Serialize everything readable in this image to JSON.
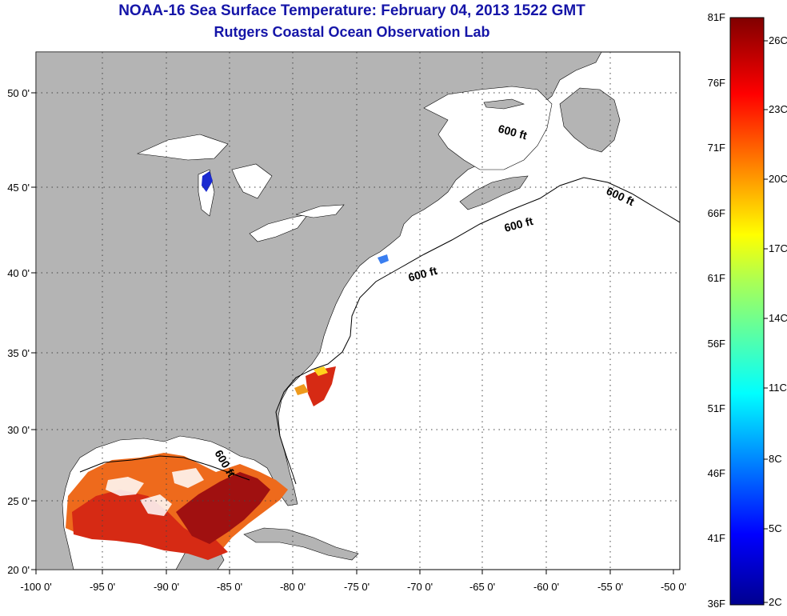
{
  "title": "NOAA-16 Sea Surface Temperature:  February 04, 2013 1522 GMT",
  "subtitle": "Rutgers Coastal Ocean Observation Lab",
  "lon_ticks": [
    "-100 0'",
    "-95 0'",
    "-90 0'",
    "-85 0'",
    "-80 0'",
    "-75 0'",
    "-70 0'",
    "-65 0'",
    "-60 0'",
    "-55 0'",
    "-50 0'"
  ],
  "lat_ticks": [
    "50 0'",
    "45 0'",
    "40 0'",
    "35 0'",
    "30 0'",
    "25 0'",
    "20 0'"
  ],
  "contour_labels": [
    "600 ft",
    "600 ft",
    "600 ft",
    "600 ft",
    "600 ft"
  ],
  "colorbar": {
    "f_labels": [
      "81F",
      "76F",
      "71F",
      "66F",
      "61F",
      "56F",
      "51F",
      "46F",
      "41F",
      "36F"
    ],
    "c_labels": [
      "26C",
      "23C",
      "20C",
      "17C",
      "14C",
      "11C",
      "8C",
      "5C",
      "2C"
    ]
  },
  "colors": {
    "land": "#b4b4b4",
    "ocean": "#ffffff",
    "title": "#1515a8",
    "sst_warm": "#d62a14",
    "sst_hot": "#a01010",
    "sst_mid": "#ee6a1c"
  }
}
